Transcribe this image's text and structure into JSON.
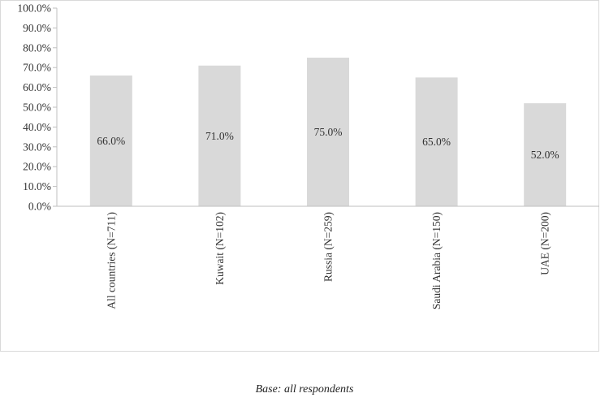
{
  "chart_data": {
    "type": "bar",
    "categories": [
      "All countries (N=711)",
      "Kuwait (N=102)",
      "Russia (N=259)",
      "Saudi Arabia (N=150)",
      "UAE (N=200)"
    ],
    "values": [
      66.0,
      71.0,
      75.0,
      65.0,
      52.0
    ],
    "data_labels": [
      "66.0%",
      "71.0%",
      "75.0%",
      "65.0%",
      "52.0%"
    ],
    "y_ticks": [
      "0.0%",
      "10.0%",
      "20.0%",
      "30.0%",
      "40.0%",
      "50.0%",
      "60.0%",
      "70.0%",
      "80.0%",
      "90.0%",
      "100.0%"
    ],
    "ylim": [
      0,
      100
    ],
    "bar_color": "#d9d9d9",
    "axis_color": "#bfbfbf",
    "grid": false,
    "legend": "none"
  },
  "caption": "Base: all respondents"
}
